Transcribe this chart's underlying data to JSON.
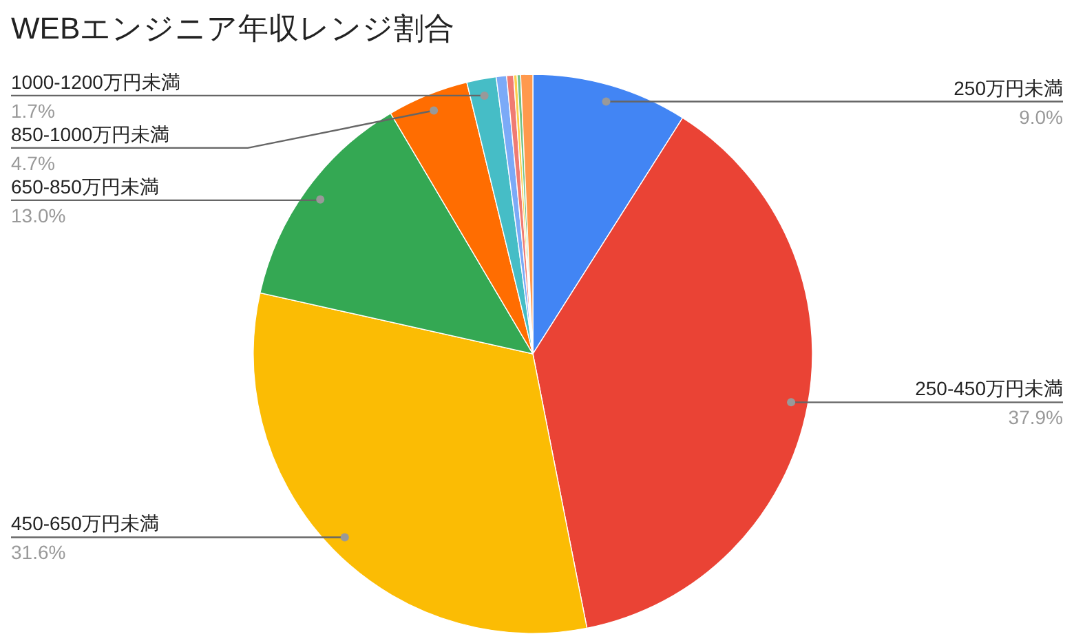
{
  "chart_data": {
    "type": "pie",
    "title": "WEBエンジニア年収レンジ割合",
    "categories": [
      "250万円未満",
      "250-450万円未満",
      "450-650万円未満",
      "650-850万円未満",
      "850-1000万円未満",
      "1000-1200万円未満",
      null,
      null,
      null,
      null,
      null
    ],
    "values": [
      9.0,
      37.9,
      31.6,
      13.0,
      4.7,
      1.7,
      0.6,
      0.4,
      0.2,
      0.2,
      0.7
    ],
    "colors": [
      "#4285f4",
      "#ea4335",
      "#fbbc04",
      "#34a853",
      "#ff6d01",
      "#46bdc6",
      "#7baaf7",
      "#f07b72",
      "#fcd04f",
      "#71c287",
      "#ff994d"
    ],
    "value_labels": [
      "9.0%",
      "37.9%",
      "31.6%",
      "13.0%",
      "4.7%",
      "1.7%",
      null,
      null,
      null,
      null,
      null
    ]
  }
}
